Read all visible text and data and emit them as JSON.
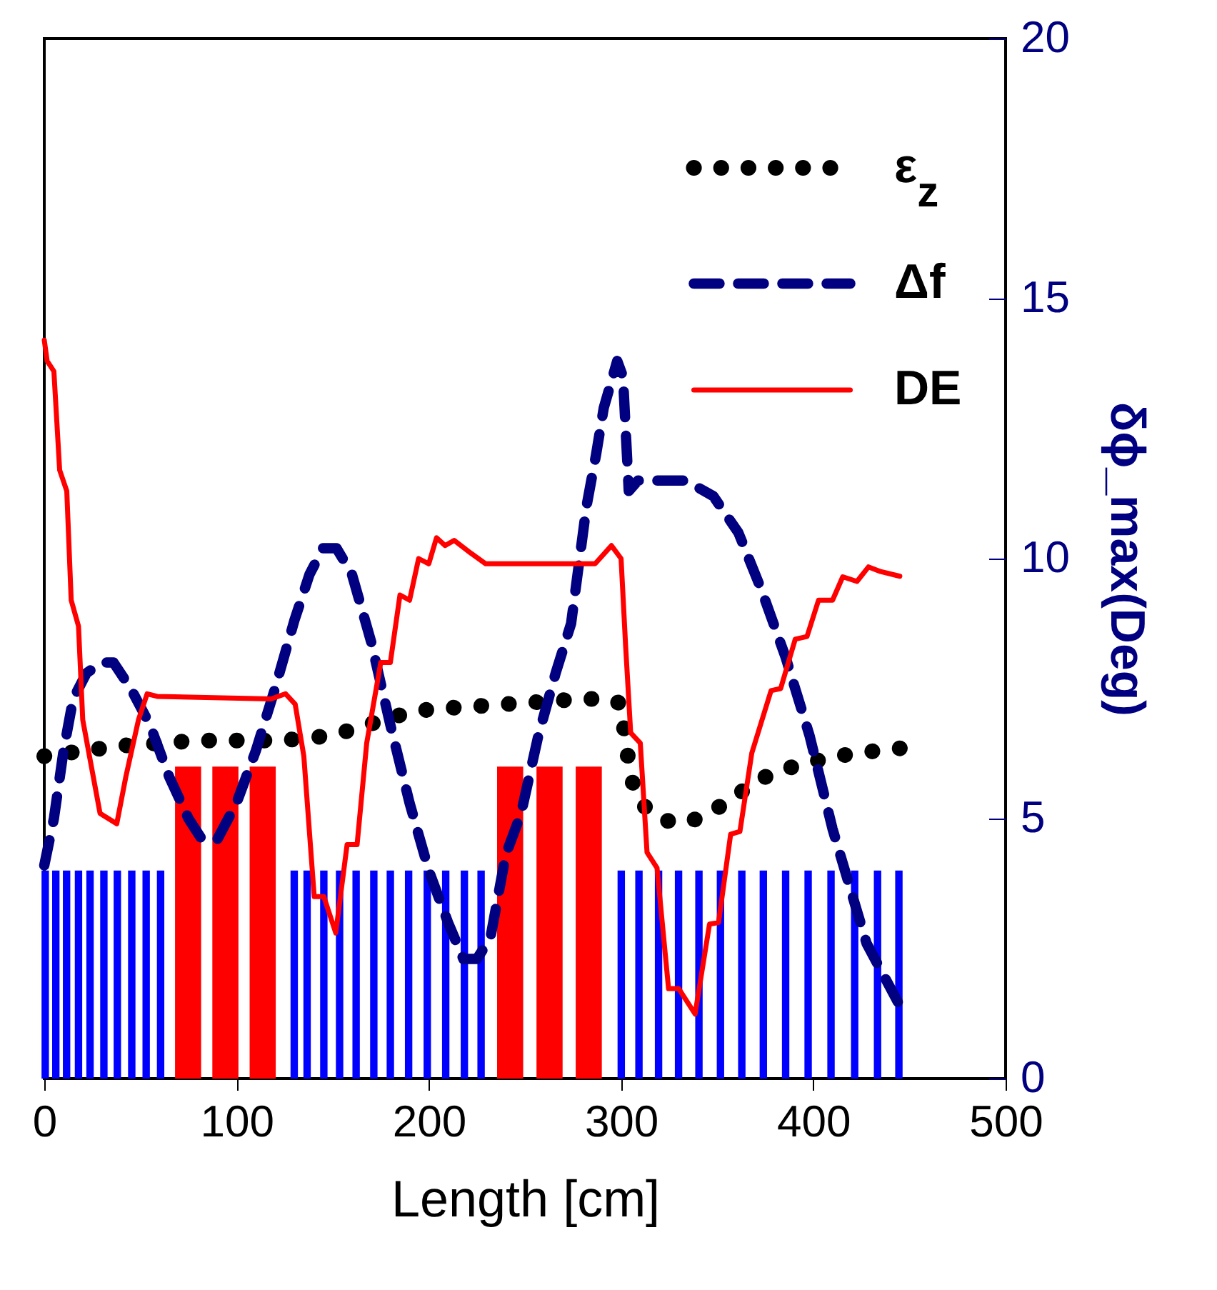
{
  "chart_data": {
    "type": "line",
    "xlabel": "Length [cm]",
    "ylabel": "δϕ_max(Deg)",
    "xlim": [
      0,
      500
    ],
    "xticks": [
      0,
      100,
      200,
      300,
      400,
      500
    ],
    "ylim": [
      0,
      20
    ],
    "yticks": [
      0,
      5,
      10,
      15,
      20
    ],
    "legend": "top right",
    "grid": false,
    "series": [
      {
        "type": "bar",
        "color": "#0000ff",
        "x": [
          0.5,
          6,
          11.6,
          17.8,
          23.8,
          31,
          38,
          45.5,
          53,
          60.5,
          130,
          136.7,
          145.4,
          153.6,
          162.2,
          171.4,
          180,
          189.5,
          199.2,
          208.8,
          218.5,
          227.2,
          300.1,
          309.3,
          319.5,
          329.9,
          340.5,
          351.7,
          362.8,
          374,
          385.6,
          397.3,
          409.2,
          421.5,
          433.4,
          444.5
        ],
        "values": [
          4,
          4,
          4,
          4,
          4,
          4,
          4,
          4,
          4,
          4,
          4,
          4,
          4,
          4,
          4,
          4,
          4,
          4,
          4,
          4,
          4,
          4,
          4,
          4,
          4,
          4,
          4,
          4,
          4,
          4,
          4,
          4,
          4,
          4,
          4,
          4
        ]
      },
      {
        "type": "bar",
        "color": "#ff0000",
        "x": [
          74.8,
          94.2,
          113.6,
          242.3,
          262.8,
          283.2
        ],
        "values": [
          6,
          6,
          6,
          6,
          6,
          6
        ]
      },
      {
        "name": "ε$_{z}$",
        "color": "#000000",
        "line_style": "dotted",
        "x": [
          0,
          20,
          40,
          60,
          80,
          100,
          120,
          140,
          160,
          180,
          200,
          220,
          240,
          260,
          280,
          295,
          300,
          302,
          305,
          310,
          320,
          330,
          340,
          350,
          360,
          370,
          380,
          400,
          420,
          445
        ],
        "values": [
          6.2,
          6.3,
          6.4,
          6.45,
          6.5,
          6.5,
          6.5,
          6.55,
          6.7,
          6.95,
          7.1,
          7.15,
          7.2,
          7.25,
          7.3,
          7.3,
          7.2,
          6.6,
          5.8,
          5.3,
          5.0,
          4.9,
          5.0,
          5.2,
          5.45,
          5.7,
          5.9,
          6.1,
          6.25,
          6.35
        ]
      },
      {
        "name": "Δf",
        "color": "#000080",
        "line_style": "dashed",
        "x": [
          0,
          5,
          10,
          15,
          22,
          30,
          36,
          45,
          55,
          65,
          75,
          82,
          90,
          100,
          110,
          120,
          130,
          138,
          145,
          152,
          160,
          170,
          180,
          190,
          200,
          210,
          218,
          225,
          232,
          240,
          248,
          257,
          266,
          274,
          282,
          287,
          291,
          298,
          301,
          304,
          308.8,
          320,
          333.6,
          348,
          361,
          373,
          385.6,
          398,
          410,
          427.7,
          445
        ],
        "values": [
          4.1,
          5,
          6.3,
          7.3,
          7.8,
          8.0,
          8.0,
          7.5,
          6.8,
          5.8,
          5.0,
          4.6,
          4.6,
          5.3,
          6.3,
          7.5,
          8.8,
          9.7,
          10.2,
          10.2,
          9.7,
          8.4,
          6.8,
          5.3,
          4.0,
          3.0,
          2.3,
          2.3,
          2.7,
          4.3,
          5.1,
          6.6,
          7.8,
          8.75,
          11.0,
          12.0,
          12.9,
          13.8,
          13.5,
          11.3,
          11.5,
          11.5,
          11.5,
          11.2,
          10.5,
          9.4,
          8.1,
          6.6,
          4.8,
          2.6,
          1.4
        ]
      },
      {
        "name": "DE",
        "color": "#ff0000",
        "line_style": "solid",
        "x": [
          0,
          1.5,
          5,
          8,
          11.7,
          14,
          17.8,
          20,
          29,
          37.7,
          42.4,
          49,
          53.5,
          58.7,
          118,
          125.5,
          130.5,
          135,
          140.4,
          145.4,
          151.6,
          157.5,
          162.7,
          167.7,
          175,
          180,
          185,
          190,
          194.7,
          200,
          204,
          208.5,
          213.2,
          222,
          229.6,
          286.5,
          295,
          300,
          302.4,
          305,
          310,
          313.5,
          318.7,
          324.7,
          330,
          338.5,
          346,
          350.7,
          357,
          361.8,
          368,
          378,
          383,
          390.6,
          396.7,
          402.7,
          410,
          415.3,
          422.7,
          428.7,
          435,
          445
        ],
        "values": [
          14.2,
          13.8,
          13.6,
          11.7,
          11.3,
          9.2,
          8.7,
          6.9,
          5.1,
          4.9,
          5.8,
          6.9,
          7.4,
          7.35,
          7.3,
          7.4,
          7.2,
          6.2,
          3.5,
          3.5,
          2.8,
          4.5,
          4.5,
          6.45,
          8.0,
          8.0,
          9.3,
          9.2,
          10.0,
          9.9,
          10.4,
          10.25,
          10.35,
          10.1,
          9.9,
          9.9,
          10.25,
          10.0,
          8.3,
          6.65,
          6.45,
          4.35,
          4.05,
          1.73,
          1.73,
          1.24,
          2.97,
          3.0,
          4.7,
          4.75,
          6.26,
          7.46,
          7.5,
          8.45,
          8.5,
          9.2,
          9.2,
          9.65,
          9.56,
          9.84,
          9.75,
          9.66
        ]
      }
    ]
  }
}
